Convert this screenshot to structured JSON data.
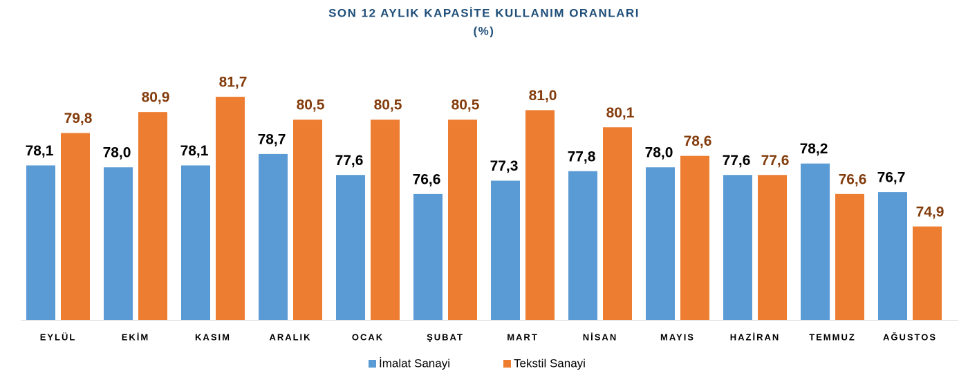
{
  "chart_data": {
    "type": "bar",
    "title": "SON 12 AYLIK KAPASİTE KULLANIM ORANLARI",
    "subtitle": "(%)",
    "categories": [
      "EYLÜL",
      "EKİM",
      "KASIM",
      "ARALIK",
      "OCAK",
      "ŞUBAT",
      "MART",
      "NİSAN",
      "MAYIS",
      "HAZİRAN",
      "TEMMUZ",
      "AĞUSTOS"
    ],
    "series": [
      {
        "name": "İmalat Sanayi",
        "color": "#5b9bd5",
        "label_color": "#000000",
        "values": [
          78.1,
          78.0,
          78.1,
          78.7,
          77.6,
          76.6,
          77.3,
          77.8,
          78.0,
          77.6,
          78.2,
          76.7
        ],
        "value_labels": [
          "78,1",
          "78,0",
          "78,1",
          "78,7",
          "77,6",
          "76,6",
          "77,3",
          "77,8",
          "78,0",
          "77,6",
          "78,2",
          "76,7"
        ]
      },
      {
        "name": "Tekstil Sanayi",
        "color": "#ed7d31",
        "label_color": "#843c0c",
        "values": [
          79.8,
          80.9,
          81.7,
          80.5,
          80.5,
          80.5,
          81.0,
          80.1,
          78.6,
          77.6,
          76.6,
          74.9
        ],
        "value_labels": [
          "79,8",
          "80,9",
          "81,7",
          "80,5",
          "80,5",
          "80,5",
          "81,0",
          "80,1",
          "78,6",
          "77,6",
          "76,6",
          "74,9"
        ]
      }
    ],
    "ylim": [
      70,
      82.5
    ],
    "legend": "bottom"
  }
}
